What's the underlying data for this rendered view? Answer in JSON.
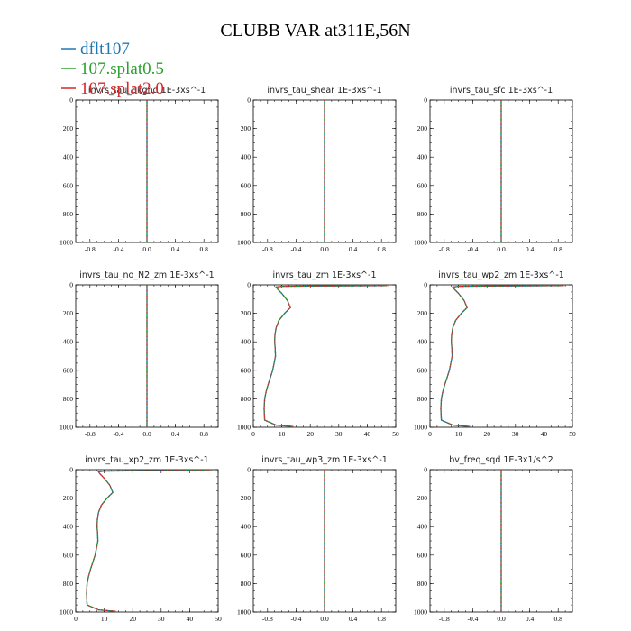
{
  "figure": {
    "title": "CLUBB VAR at311E,56N"
  },
  "legend": [
    {
      "name": "dflt107",
      "color": "#1f77b4"
    },
    {
      "name": "107.splat0.5",
      "color": "#2ca02c"
    },
    {
      "name": "107.splat2.0",
      "color": "#d62728"
    }
  ],
  "chart_data": [
    {
      "type": "line",
      "title": "invrs_tau_bkgnd  1E-3xs^-1",
      "xlim": [
        -1,
        1
      ],
      "ylim": [
        1000,
        0
      ],
      "xticks": [
        "-0.8",
        "-0.4",
        "0.0",
        "0.4",
        "0.8"
      ],
      "yticks": [
        "0",
        "200",
        "400",
        "600",
        "800",
        "1000"
      ],
      "series": [
        {
          "name": "dflt107",
          "x": [
            0,
            0
          ],
          "y": [
            0,
            1000
          ]
        },
        {
          "name": "107.splat0.5",
          "x": [
            0,
            0
          ],
          "y": [
            0,
            1000
          ]
        },
        {
          "name": "107.splat2.0",
          "x": [
            0,
            0
          ],
          "y": [
            0,
            1000
          ]
        }
      ]
    },
    {
      "type": "line",
      "title": "invrs_tau_shear  1E-3xs^-1",
      "xlim": [
        -1,
        1
      ],
      "ylim": [
        1000,
        0
      ],
      "xticks": [
        "-0.8",
        "-0.4",
        "0.0",
        "0.4",
        "0.8"
      ],
      "yticks": [
        "0",
        "200",
        "400",
        "600",
        "800",
        "1000"
      ],
      "series": [
        {
          "name": "dflt107",
          "x": [
            0,
            0
          ],
          "y": [
            0,
            1000
          ]
        },
        {
          "name": "107.splat0.5",
          "x": [
            0,
            0
          ],
          "y": [
            0,
            1000
          ]
        },
        {
          "name": "107.splat2.0",
          "x": [
            0,
            0
          ],
          "y": [
            0,
            1000
          ]
        }
      ]
    },
    {
      "type": "line",
      "title": "invrs_tau_sfc  1E-3xs^-1",
      "xlim": [
        -1,
        1
      ],
      "ylim": [
        1000,
        0
      ],
      "xticks": [
        "-0.8",
        "-0.4",
        "0.0",
        "0.4",
        "0.8"
      ],
      "yticks": [
        "0",
        "200",
        "400",
        "600",
        "800",
        "1000"
      ],
      "series": [
        {
          "name": "dflt107",
          "x": [
            0,
            0
          ],
          "y": [
            0,
            1000
          ]
        },
        {
          "name": "107.splat0.5",
          "x": [
            0,
            0
          ],
          "y": [
            0,
            1000
          ]
        },
        {
          "name": "107.splat2.0",
          "x": [
            0,
            0
          ],
          "y": [
            0,
            1000
          ]
        }
      ]
    },
    {
      "type": "line",
      "title": "invrs_tau_no_N2_zm  1E-3xs^-1",
      "xlim": [
        -1,
        1
      ],
      "ylim": [
        1000,
        0
      ],
      "xticks": [
        "-0.8",
        "-0.4",
        "0.0",
        "0.4",
        "0.8"
      ],
      "yticks": [
        "0",
        "200",
        "400",
        "600",
        "800",
        "1000"
      ],
      "series": [
        {
          "name": "dflt107",
          "x": [
            0,
            0
          ],
          "y": [
            0,
            1000
          ]
        },
        {
          "name": "107.splat0.5",
          "x": [
            0,
            0
          ],
          "y": [
            0,
            1000
          ]
        },
        {
          "name": "107.splat2.0",
          "x": [
            0,
            0
          ],
          "y": [
            0,
            1000
          ]
        }
      ]
    },
    {
      "type": "line",
      "title": "invrs_tau_zm  1E-3xs^-1",
      "xlim": [
        0,
        50
      ],
      "ylim": [
        1000,
        0
      ],
      "xticks": [
        "0",
        "10",
        "20",
        "30",
        "40",
        "50"
      ],
      "yticks": [
        "0",
        "200",
        "400",
        "600",
        "800",
        "1000"
      ],
      "series": [
        {
          "name": "dflt107",
          "x": [
            47,
            20,
            10,
            8,
            8.5,
            10,
            12,
            13,
            11,
            9,
            8,
            7.6,
            7.5,
            7.7,
            7.8,
            7.3,
            6.8,
            6,
            5.2,
            4.5,
            4,
            3.8,
            4,
            8,
            14
          ],
          "y": [
            5,
            8,
            10,
            15,
            30,
            60,
            110,
            160,
            200,
            250,
            300,
            350,
            400,
            450,
            500,
            550,
            600,
            650,
            700,
            750,
            800,
            870,
            950,
            985,
            995
          ]
        },
        {
          "name": "107.splat0.5",
          "x": [
            47,
            20,
            10,
            8,
            8.5,
            10,
            12,
            13,
            11,
            9,
            8,
            7.6,
            7.5,
            7.7,
            7.8,
            7.3,
            6.8,
            6,
            5.2,
            4.5,
            4,
            3.8,
            4,
            8,
            14
          ],
          "y": [
            5,
            8,
            10,
            15,
            30,
            60,
            110,
            160,
            200,
            250,
            300,
            350,
            400,
            450,
            500,
            550,
            600,
            650,
            700,
            750,
            800,
            870,
            950,
            985,
            995
          ]
        },
        {
          "name": "107.splat2.0",
          "x": [
            47,
            20,
            10,
            8,
            8.5,
            10,
            12,
            13,
            11,
            9,
            8,
            7.6,
            7.5,
            7.7,
            7.8,
            7.3,
            6.8,
            6,
            5.2,
            4.5,
            4,
            3.8,
            4,
            8,
            14
          ],
          "y": [
            5,
            8,
            10,
            15,
            30,
            60,
            110,
            160,
            200,
            250,
            300,
            350,
            400,
            450,
            500,
            550,
            600,
            650,
            700,
            750,
            800,
            870,
            950,
            985,
            995
          ]
        }
      ]
    },
    {
      "type": "line",
      "title": "invrs_tau_wp2_zm  1E-3xs^-1",
      "xlim": [
        0,
        50
      ],
      "ylim": [
        1000,
        0
      ],
      "xticks": [
        "0",
        "10",
        "20",
        "30",
        "40",
        "50"
      ],
      "yticks": [
        "0",
        "200",
        "400",
        "600",
        "800",
        "1000"
      ],
      "series": [
        {
          "name": "dflt107",
          "x": [
            47,
            20,
            10,
            8,
            8.5,
            10,
            12,
            13,
            11,
            9,
            8,
            7.6,
            7.5,
            7.7,
            7.8,
            7.3,
            6.8,
            6,
            5.2,
            4.5,
            4,
            3.8,
            4,
            8,
            14
          ],
          "y": [
            5,
            8,
            10,
            15,
            30,
            60,
            110,
            160,
            200,
            250,
            300,
            350,
            400,
            450,
            500,
            550,
            600,
            650,
            700,
            750,
            800,
            870,
            950,
            985,
            995
          ]
        },
        {
          "name": "107.splat0.5",
          "x": [
            47,
            20,
            10,
            8,
            8.5,
            10,
            12,
            13,
            11,
            9,
            8,
            7.6,
            7.5,
            7.7,
            7.8,
            7.3,
            6.8,
            6,
            5.2,
            4.5,
            4,
            3.8,
            4,
            8,
            14
          ],
          "y": [
            5,
            8,
            10,
            15,
            30,
            60,
            110,
            160,
            200,
            250,
            300,
            350,
            400,
            450,
            500,
            550,
            600,
            650,
            700,
            750,
            800,
            870,
            950,
            985,
            995
          ]
        },
        {
          "name": "107.splat2.0",
          "x": [
            47,
            20,
            10,
            8,
            8.5,
            10,
            12,
            13,
            11,
            9,
            8,
            7.6,
            7.5,
            7.7,
            7.8,
            7.3,
            6.8,
            6,
            5.2,
            4.5,
            4,
            3.8,
            4,
            8,
            14
          ],
          "y": [
            5,
            8,
            10,
            15,
            30,
            60,
            110,
            160,
            200,
            250,
            300,
            350,
            400,
            450,
            500,
            550,
            600,
            650,
            700,
            750,
            800,
            870,
            950,
            985,
            995
          ]
        }
      ]
    },
    {
      "type": "line",
      "title": "invrs_tau_xp2_zm  1E-3xs^-1",
      "xlim": [
        0,
        50
      ],
      "ylim": [
        1000,
        0
      ],
      "xticks": [
        "0",
        "10",
        "20",
        "30",
        "40",
        "50"
      ],
      "yticks": [
        "0",
        "200",
        "400",
        "600",
        "800",
        "1000"
      ],
      "series": [
        {
          "name": "dflt107",
          "x": [
            47,
            20,
            10,
            8,
            8.5,
            10,
            12,
            13,
            11,
            9,
            8,
            7.6,
            7.5,
            7.7,
            7.8,
            7.3,
            6.8,
            6,
            5.2,
            4.5,
            4,
            3.8,
            4,
            8,
            14
          ],
          "y": [
            5,
            8,
            10,
            15,
            30,
            60,
            110,
            160,
            200,
            250,
            300,
            350,
            400,
            450,
            500,
            550,
            600,
            650,
            700,
            750,
            800,
            870,
            950,
            985,
            995
          ]
        },
        {
          "name": "107.splat0.5",
          "x": [
            47,
            20,
            10,
            8,
            8.5,
            10,
            12,
            13,
            11,
            9,
            8,
            7.6,
            7.5,
            7.7,
            7.8,
            7.3,
            6.8,
            6,
            5.2,
            4.5,
            4,
            3.8,
            4,
            8,
            14
          ],
          "y": [
            5,
            8,
            10,
            15,
            30,
            60,
            110,
            160,
            200,
            250,
            300,
            350,
            400,
            450,
            500,
            550,
            600,
            650,
            700,
            750,
            800,
            870,
            950,
            985,
            995
          ]
        },
        {
          "name": "107.splat2.0",
          "x": [
            47,
            20,
            10,
            8,
            8.5,
            10,
            12,
            13,
            11,
            9,
            8,
            7.6,
            7.5,
            7.7,
            7.8,
            7.3,
            6.8,
            6,
            5.2,
            4.5,
            4,
            3.8,
            4,
            8,
            14
          ],
          "y": [
            5,
            8,
            10,
            15,
            30,
            60,
            110,
            160,
            200,
            250,
            300,
            350,
            400,
            450,
            500,
            550,
            600,
            650,
            700,
            750,
            800,
            870,
            950,
            985,
            995
          ]
        }
      ]
    },
    {
      "type": "line",
      "title": "invrs_tau_wp3_zm  1E-3xs^-1",
      "xlim": [
        -1,
        1
      ],
      "ylim": [
        1000,
        0
      ],
      "xticks": [
        "-0.8",
        "-0.4",
        "0.0",
        "0.4",
        "0.8"
      ],
      "yticks": [
        "0",
        "200",
        "400",
        "600",
        "800",
        "1000"
      ],
      "series": [
        {
          "name": "dflt107",
          "x": [
            0,
            0
          ],
          "y": [
            0,
            1000
          ]
        },
        {
          "name": "107.splat0.5",
          "x": [
            0,
            0
          ],
          "y": [
            0,
            1000
          ]
        },
        {
          "name": "107.splat2.0",
          "x": [
            0,
            0
          ],
          "y": [
            0,
            1000
          ]
        }
      ]
    },
    {
      "type": "line",
      "title": "bv_freq_sqd  1E-3x1/s^2",
      "xlim": [
        -1,
        1
      ],
      "ylim": [
        1000,
        0
      ],
      "xticks": [
        "-0.8",
        "-0.4",
        "0.0",
        "0.4",
        "0.8"
      ],
      "yticks": [
        "0",
        "200",
        "400",
        "600",
        "800",
        "1000"
      ],
      "series": [
        {
          "name": "dflt107",
          "x": [
            0,
            0
          ],
          "y": [
            0,
            1000
          ]
        },
        {
          "name": "107.splat0.5",
          "x": [
            0,
            0
          ],
          "y": [
            0,
            1000
          ]
        },
        {
          "name": "107.splat2.0",
          "x": [
            0,
            0
          ],
          "y": [
            0,
            1000
          ]
        }
      ]
    }
  ]
}
